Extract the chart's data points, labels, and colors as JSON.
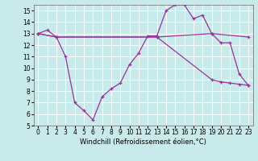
{
  "xlabel": "Windchill (Refroidissement éolien,°C)",
  "xlim": [
    -0.5,
    23.5
  ],
  "ylim": [
    5,
    15.5
  ],
  "yticks": [
    5,
    6,
    7,
    8,
    9,
    10,
    11,
    12,
    13,
    14,
    15
  ],
  "xticks": [
    0,
    1,
    2,
    3,
    4,
    5,
    6,
    7,
    8,
    9,
    10,
    11,
    12,
    13,
    14,
    15,
    16,
    17,
    18,
    19,
    20,
    21,
    22,
    23
  ],
  "line_color": "#993399",
  "bg_color": "#c8eaea",
  "grid_color": "#ffffff",
  "series1_x": [
    0,
    1,
    2,
    3,
    4,
    5,
    6,
    7,
    8,
    9,
    10,
    11,
    12,
    13,
    14,
    15,
    16,
    17,
    18,
    19,
    20,
    21,
    22,
    23
  ],
  "series1_y": [
    13.0,
    13.3,
    12.7,
    11.0,
    7.0,
    6.3,
    5.5,
    7.5,
    8.2,
    8.7,
    10.3,
    11.3,
    12.8,
    12.8,
    15.0,
    15.5,
    15.5,
    14.3,
    14.6,
    13.0,
    12.2,
    12.2,
    9.5,
    8.5
  ],
  "series2_x": [
    0,
    2,
    13,
    19,
    23
  ],
  "series2_y": [
    13.0,
    12.7,
    12.7,
    13.0,
    12.7
  ],
  "series3_x": [
    0,
    2,
    13,
    19,
    20,
    21,
    22,
    23
  ],
  "series3_y": [
    13.0,
    12.7,
    12.7,
    9.0,
    8.8,
    8.7,
    8.6,
    8.5
  ]
}
